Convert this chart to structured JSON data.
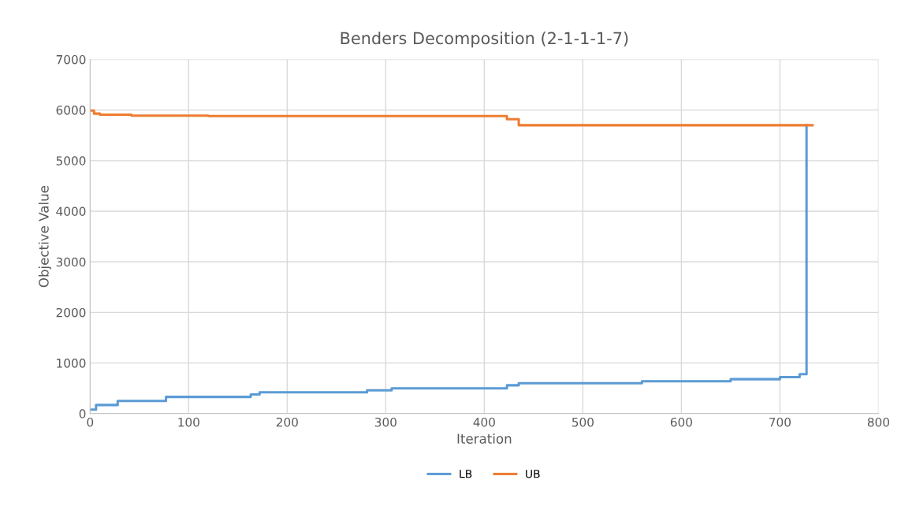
{
  "chart_data": {
    "type": "step",
    "title": "Benders Decomposition (2-1-1-1-7)",
    "xlabel": "Iteration",
    "ylabel": "Objective Value",
    "series": [
      {
        "name": "LB",
        "color": "#5b9bd5",
        "x": [
          0,
          6,
          28,
          77,
          163,
          172,
          281,
          306,
          423,
          435,
          560,
          650,
          700,
          720,
          727
        ],
        "values": [
          80,
          170,
          250,
          330,
          380,
          420,
          460,
          500,
          560,
          600,
          640,
          680,
          720,
          780,
          5700
        ]
      },
      {
        "name": "UB",
        "color": "#ed7d31",
        "x": [
          0,
          4,
          10,
          42,
          120,
          423,
          435,
          733
        ],
        "values": [
          5990,
          5930,
          5910,
          5890,
          5880,
          5820,
          5700,
          5700
        ]
      }
    ],
    "xlim": [
      0,
      800
    ],
    "xticks": [
      0,
      100,
      200,
      300,
      400,
      500,
      600,
      700,
      800
    ],
    "ylim": [
      0,
      7000
    ],
    "yticks": [
      0,
      1000,
      2000,
      3000,
      4000,
      5000,
      6000,
      7000
    ],
    "grid": true,
    "legend": "bottom",
    "marker": "none",
    "line_style": "solid"
  }
}
